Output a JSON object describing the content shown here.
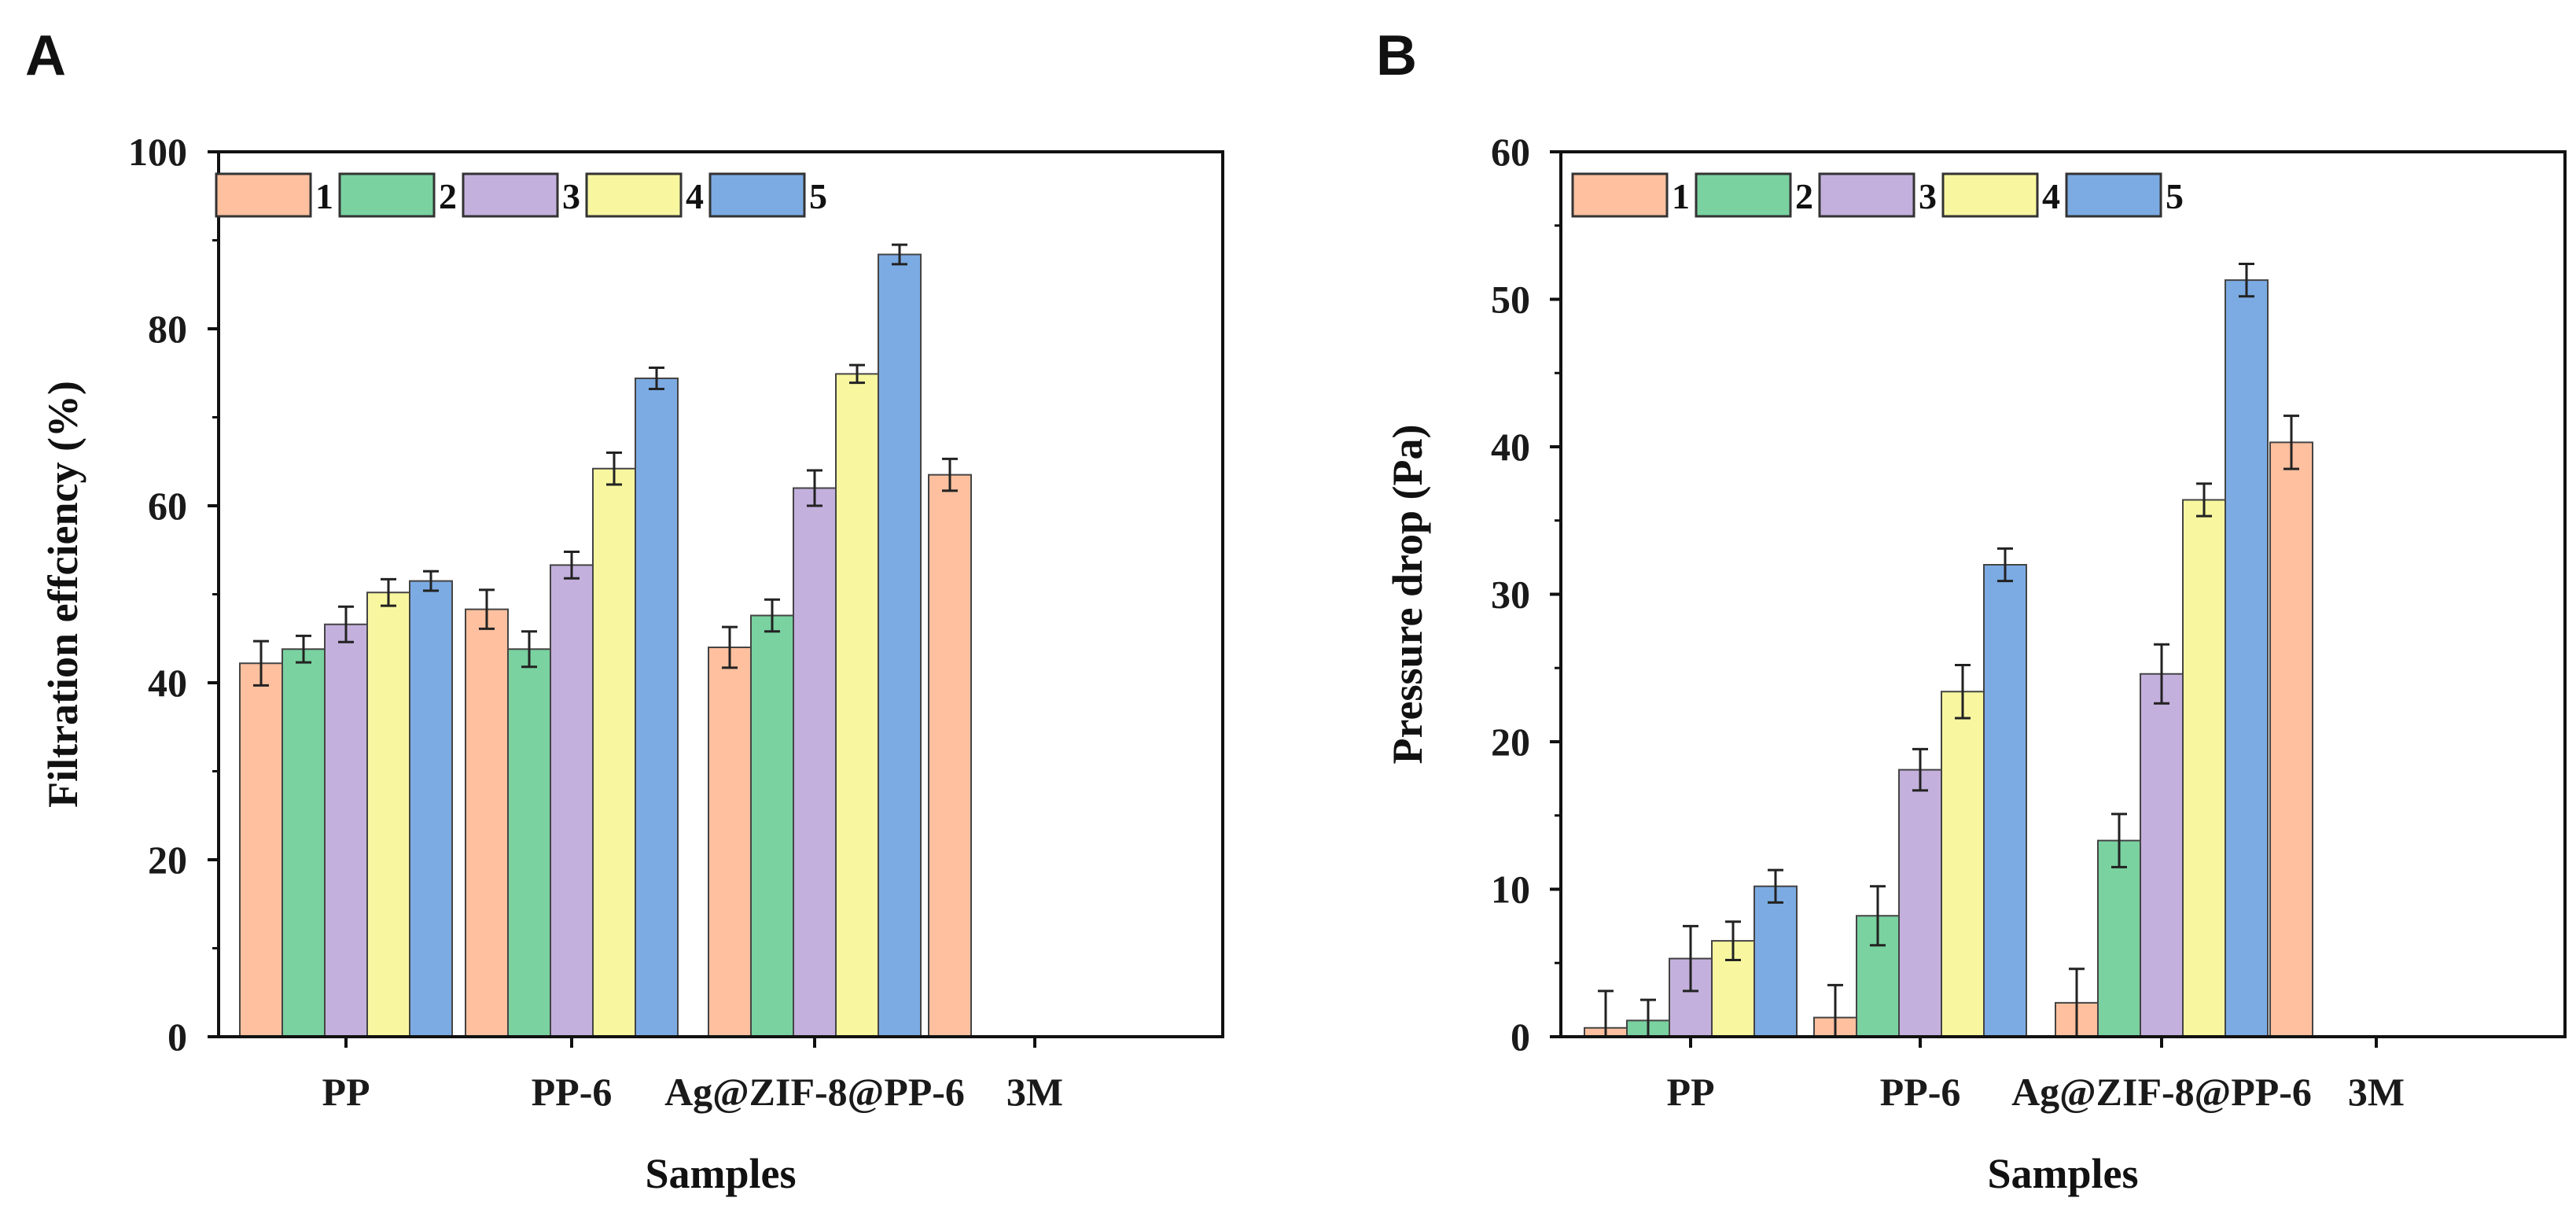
{
  "colors": [
    "#FFC09F",
    "#79D2A0",
    "#C4B0DD",
    "#F8F7A0",
    "#7CABE3"
  ],
  "chart_data": [
    {
      "panel": "A",
      "type": "bar",
      "title": "",
      "xlabel": "Samples",
      "ylabel": "Filtration effciency (%)",
      "ylim": [
        0,
        100
      ],
      "yticks": [
        0,
        20,
        40,
        60,
        80,
        100
      ],
      "categories": [
        "PP",
        "PP-6",
        "Ag@ZIF-8@PP-6",
        "3M"
      ],
      "legend_position": "top-left",
      "series": [
        {
          "name": "1",
          "values": [
            42.2,
            48.3,
            44.0,
            63.5
          ],
          "errors": [
            2.5,
            2.2,
            2.3,
            1.8
          ]
        },
        {
          "name": "2",
          "values": [
            43.8,
            43.8,
            47.6,
            null
          ],
          "errors": [
            1.5,
            2.0,
            1.8,
            null
          ]
        },
        {
          "name": "3",
          "values": [
            46.6,
            53.3,
            62.0,
            null
          ],
          "errors": [
            2.0,
            1.5,
            2.0,
            null
          ]
        },
        {
          "name": "4",
          "values": [
            50.2,
            64.2,
            74.9,
            null
          ],
          "errors": [
            1.5,
            1.8,
            1.0,
            null
          ]
        },
        {
          "name": "5",
          "values": [
            51.5,
            74.4,
            88.4,
            null
          ],
          "errors": [
            1.1,
            1.2,
            1.1,
            null
          ]
        }
      ]
    },
    {
      "panel": "B",
      "type": "bar",
      "title": "",
      "xlabel": "Samples",
      "ylabel": "Pressure drop (Pa)",
      "ylim": [
        0,
        60
      ],
      "yticks": [
        0,
        10,
        20,
        30,
        40,
        50,
        60
      ],
      "categories": [
        "PP",
        "PP-6",
        "Ag@ZIF-8@PP-6",
        "3M"
      ],
      "legend_position": "top-left",
      "series": [
        {
          "name": "1",
          "values": [
            0.6,
            1.3,
            2.3,
            40.3
          ],
          "errors": [
            2.5,
            2.2,
            2.3,
            1.8
          ]
        },
        {
          "name": "2",
          "values": [
            1.1,
            8.2,
            13.3,
            null
          ],
          "errors": [
            1.4,
            2.0,
            1.8,
            null
          ]
        },
        {
          "name": "3",
          "values": [
            5.3,
            18.1,
            24.6,
            null
          ],
          "errors": [
            2.2,
            1.4,
            2.0,
            null
          ]
        },
        {
          "name": "4",
          "values": [
            6.5,
            23.4,
            36.4,
            null
          ],
          "errors": [
            1.3,
            1.8,
            1.1,
            null
          ]
        },
        {
          "name": "5",
          "values": [
            10.2,
            32.0,
            51.3,
            null
          ],
          "errors": [
            1.1,
            1.1,
            1.1,
            null
          ]
        }
      ]
    }
  ]
}
